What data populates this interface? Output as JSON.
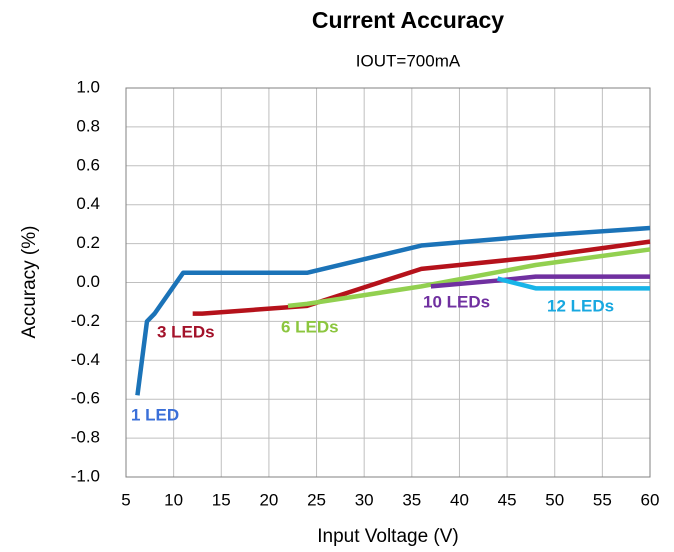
{
  "chart_data": {
    "type": "line",
    "title": "Current Accuracy",
    "subtitle": "IOUT=700mA",
    "x_label": "Input Voltage (V)",
    "y_label": "Accuracy (%)",
    "xlim": [
      5,
      60
    ],
    "xticks": [
      5,
      10,
      15,
      20,
      25,
      30,
      35,
      40,
      45,
      50,
      55,
      60
    ],
    "ylim": [
      -1,
      1
    ],
    "yticks": [
      {
        "value": -1,
        "label": "-1.0"
      },
      -0.8,
      -0.6,
      -0.4,
      -0.2,
      {
        "value": 0,
        "label": "0.0"
      },
      0.2,
      0.4,
      0.6,
      0.8,
      {
        "value": 1,
        "label": "1.0"
      }
    ],
    "grid": true,
    "series": [
      {
        "name": "1 LED",
        "color": "#1b73b8",
        "label_color": "#3a6fd8",
        "x": [
          6.2,
          7.2,
          8,
          11,
          24,
          36,
          48,
          60
        ],
        "values": [
          -0.58,
          -0.2,
          -0.16,
          0.05,
          0.05,
          0.19,
          0.24,
          0.28
        ]
      },
      {
        "name": "3 LEDs",
        "color": "#b5121b",
        "label_color": "#a3122a",
        "x": [
          12,
          13,
          24,
          36,
          48,
          60
        ],
        "values": [
          -0.16,
          -0.16,
          -0.12,
          0.07,
          0.13,
          0.21
        ]
      },
      {
        "name": "6 LEDs",
        "color": "#92d050",
        "label_color": "#8cc63f",
        "x": [
          22,
          24,
          36,
          48,
          60
        ],
        "values": [
          -0.12,
          -0.11,
          -0.02,
          0.09,
          0.17
        ]
      },
      {
        "name": "10 LEDs",
        "color": "#7030a0",
        "label_color": "#7030a0",
        "x": [
          37,
          44,
          48,
          60
        ],
        "values": [
          -0.02,
          0.01,
          0.03,
          0.03
        ]
      },
      {
        "name": "12 LEDs",
        "color": "#18b4e8",
        "label_color": "#18a8e0",
        "x": [
          44,
          48,
          60
        ],
        "values": [
          0.02,
          -0.03,
          -0.03
        ]
      }
    ]
  }
}
